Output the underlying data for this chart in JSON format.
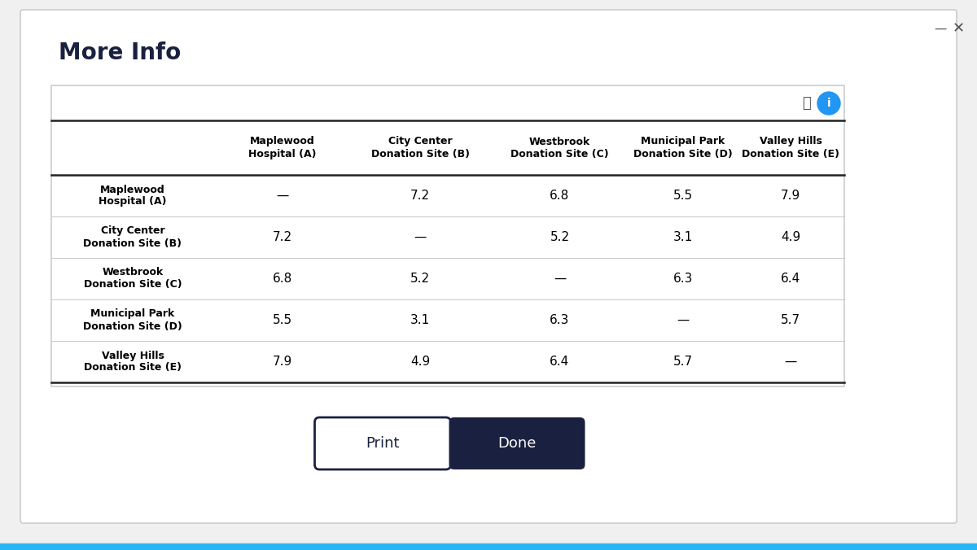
{
  "title": "More Info",
  "col_headers": [
    "Maplewood\nHospital (A)",
    "City Center\nDonation Site (B)",
    "Westbrook\nDonation Site (C)",
    "Municipal Park\nDonation Site (D)",
    "Valley Hills\nDonation Site (E)"
  ],
  "row_headers": [
    "Maplewood\nHospital (A)",
    "City Center\nDonation Site (B)",
    "Westbrook\nDonation Site (C)",
    "Municipal Park\nDonation Site (D)",
    "Valley Hills\nDonation Site (E)"
  ],
  "table_data": [
    [
      "—",
      "7.2",
      "6.8",
      "5.5",
      "7.9"
    ],
    [
      "7.2",
      "—",
      "5.2",
      "3.1",
      "4.9"
    ],
    [
      "6.8",
      "5.2",
      "—",
      "6.3",
      "6.4"
    ],
    [
      "5.5",
      "3.1",
      "6.3",
      "—",
      "5.7"
    ],
    [
      "7.9",
      "4.9",
      "6.4",
      "5.7",
      "—"
    ]
  ],
  "window_bg": "#f0f0f0",
  "dialog_bg": "#ffffff",
  "title_color": "#1a2040",
  "header_color": "#000000",
  "cell_color": "#000000",
  "button_print_bg": "#ffffff",
  "button_print_border": "#1a2040",
  "button_done_bg": "#1a2040",
  "button_done_text": "#ffffff",
  "button_print_text": "#1a2040",
  "accent_blue": "#2196F3",
  "bottom_bar_color": "#29b6f6",
  "line_color_thick": "#222222",
  "line_color_light": "#cccccc",
  "icon_color": "#555555"
}
